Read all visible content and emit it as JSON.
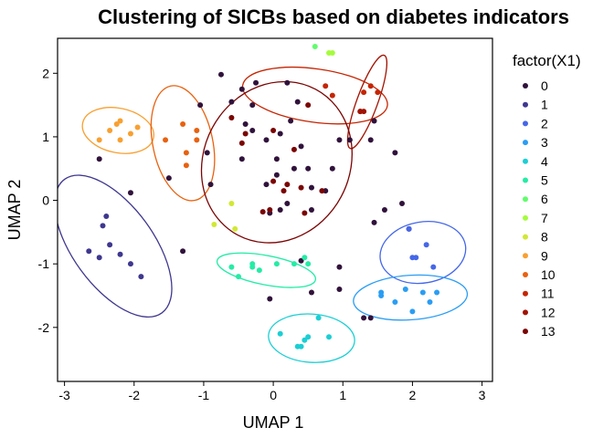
{
  "chart_data": {
    "type": "scatter",
    "title": "Clustering of SICBs based on diabetes indicators",
    "xlabel": "UMAP 1",
    "ylabel": "UMAP 2",
    "xlim": [
      -3.1,
      3.15
    ],
    "ylim": [
      -2.85,
      2.55
    ],
    "x_ticks": [
      -3,
      -2,
      -1,
      0,
      1,
      2,
      3
    ],
    "y_ticks": [
      -2,
      -1,
      0,
      1,
      2
    ],
    "grid": false,
    "legend": {
      "title": "factor(X1)",
      "position": "right"
    },
    "series": [
      {
        "name": "0",
        "color": "#30123B",
        "points": [
          [
            -2.5,
            0.65
          ],
          [
            -2.05,
            0.12
          ],
          [
            -1.5,
            0.35
          ],
          [
            -1.3,
            -0.8
          ],
          [
            -1.05,
            1.5
          ],
          [
            -0.95,
            0.75
          ],
          [
            -0.9,
            0.25
          ],
          [
            -0.75,
            1.98
          ],
          [
            -0.6,
            1.55
          ],
          [
            -0.3,
            1.5
          ],
          [
            -0.25,
            1.85
          ],
          [
            -0.45,
            1.75
          ],
          [
            -0.4,
            1.2
          ],
          [
            -0.3,
            1.1
          ],
          [
            -0.45,
            0.65
          ],
          [
            -0.1,
            0.95
          ],
          [
            0.2,
            1.85
          ],
          [
            0.35,
            1.55
          ],
          [
            0.25,
            1.25
          ],
          [
            0.1,
            1.05
          ],
          [
            0.05,
            0.65
          ],
          [
            0.3,
            0.5
          ],
          [
            0.4,
            0.85
          ],
          [
            0.05,
            0.4
          ],
          [
            -0.1,
            0.25
          ],
          [
            0.1,
            -0.15
          ],
          [
            0.2,
            -0.05
          ],
          [
            0.5,
            0.5
          ],
          [
            0.55,
            0.2
          ],
          [
            0.75,
            0.15
          ],
          [
            0.85,
            0.5
          ],
          [
            0.95,
            0.95
          ],
          [
            1.1,
            0.95
          ],
          [
            1.4,
            0.95
          ],
          [
            1.45,
            1.25
          ],
          [
            0.55,
            -0.15
          ],
          [
            -0.05,
            -1.55
          ],
          [
            0.4,
            -0.95
          ],
          [
            0.55,
            -1.45
          ],
          [
            0.95,
            -1.05
          ],
          [
            0.95,
            -1.4
          ],
          [
            1.45,
            -0.35
          ],
          [
            1.6,
            -0.15
          ],
          [
            1.85,
            -0.05
          ],
          [
            1.75,
            0.75
          ],
          [
            1.95,
            -0.45
          ],
          [
            1.3,
            -1.85
          ],
          [
            1.4,
            -1.85
          ],
          [
            -0.05,
            -0.2
          ]
        ]
      },
      {
        "name": "1",
        "color": "#3E378F",
        "points": [
          [
            -2.65,
            -0.8
          ],
          [
            -2.5,
            -0.9
          ],
          [
            -2.45,
            -0.4
          ],
          [
            -2.4,
            -0.25
          ],
          [
            -2.35,
            -0.7
          ],
          [
            -2.2,
            -0.85
          ],
          [
            -2.05,
            -1.0
          ],
          [
            -1.9,
            -1.2
          ]
        ]
      },
      {
        "name": "2",
        "color": "#4567E8",
        "points": [
          [
            1.95,
            -0.45
          ],
          [
            2.0,
            -0.9
          ],
          [
            2.05,
            -0.9
          ],
          [
            2.2,
            -0.7
          ],
          [
            2.3,
            -1.05
          ]
        ]
      },
      {
        "name": "3",
        "color": "#2A9DF4",
        "points": [
          [
            1.55,
            -1.45
          ],
          [
            1.55,
            -1.5
          ],
          [
            1.75,
            -1.6
          ],
          [
            1.9,
            -1.4
          ],
          [
            2.0,
            -1.75
          ],
          [
            2.15,
            -1.45
          ],
          [
            2.25,
            -1.6
          ],
          [
            2.35,
            -1.45
          ]
        ]
      },
      {
        "name": "4",
        "color": "#1BCFD4",
        "points": [
          [
            0.1,
            -2.1
          ],
          [
            0.35,
            -2.3
          ],
          [
            0.45,
            -2.2
          ],
          [
            0.5,
            -2.15
          ],
          [
            0.65,
            -1.85
          ],
          [
            0.8,
            -2.15
          ],
          [
            0.4,
            -2.3
          ]
        ]
      },
      {
        "name": "5",
        "color": "#24ECA6",
        "points": [
          [
            -0.6,
            -1.05
          ],
          [
            -0.5,
            -1.2
          ],
          [
            -0.3,
            -1.05
          ],
          [
            -0.2,
            -1.1
          ],
          [
            -0.3,
            -1.0
          ],
          [
            0.05,
            -1.0
          ],
          [
            0.3,
            -1.0
          ],
          [
            0.45,
            -0.9
          ],
          [
            0.5,
            -1.0
          ]
        ]
      },
      {
        "name": "6",
        "color": "#61FC6C",
        "points": [
          [
            0.6,
            2.42
          ]
        ]
      },
      {
        "name": "7",
        "color": "#A4FC3C",
        "points": [
          [
            0.8,
            2.32
          ],
          [
            0.85,
            2.32
          ]
        ]
      },
      {
        "name": "8",
        "color": "#D1E834",
        "points": [
          [
            -0.85,
            -0.38
          ],
          [
            -0.55,
            -0.45
          ],
          [
            -0.6,
            -0.05
          ]
        ]
      },
      {
        "name": "9",
        "color": "#F8A031",
        "points": [
          [
            -2.5,
            0.95
          ],
          [
            -2.35,
            1.1
          ],
          [
            -2.25,
            1.2
          ],
          [
            -2.2,
            1.25
          ],
          [
            -2.2,
            0.95
          ],
          [
            -2.05,
            1.05
          ],
          [
            -1.95,
            1.15
          ]
        ]
      },
      {
        "name": "10",
        "color": "#E8610F",
        "points": [
          [
            -1.55,
            0.95
          ],
          [
            -1.3,
            1.2
          ],
          [
            -1.25,
            0.55
          ],
          [
            -1.25,
            0.75
          ],
          [
            -1.1,
            1.1
          ],
          [
            -1.1,
            0.95
          ]
        ]
      },
      {
        "name": "11",
        "color": "#C42503",
        "points": [
          [
            0.75,
            1.8
          ],
          [
            0.85,
            1.65
          ],
          [
            1.25,
            1.4
          ],
          [
            1.3,
            1.7
          ],
          [
            1.4,
            1.8
          ],
          [
            1.5,
            1.7
          ]
        ]
      },
      {
        "name": "12",
        "color": "#A11201",
        "points": [
          [
            1.25,
            1.4
          ],
          [
            1.3,
            1.4
          ]
        ]
      },
      {
        "name": "13",
        "color": "#7A0403",
        "points": [
          [
            -0.6,
            1.3
          ],
          [
            -0.4,
            1.05
          ],
          [
            -0.45,
            0.9
          ],
          [
            0.0,
            0.3
          ],
          [
            0.2,
            0.25
          ],
          [
            0.4,
            0.2
          ],
          [
            0.15,
            0.15
          ],
          [
            0.45,
            -0.2
          ],
          [
            0.7,
            0.15
          ],
          [
            -0.05,
            -0.15
          ],
          [
            0.0,
            1.1
          ],
          [
            0.5,
            1.5
          ],
          [
            0.3,
            0.8
          ],
          [
            -0.15,
            -0.18
          ]
        ]
      }
    ],
    "ellipses": [
      {
        "series": "1",
        "center": [
          -2.3,
          -0.72
        ],
        "rx": 0.58,
        "ry": 1.3,
        "angle": -36
      },
      {
        "series": "2",
        "center": [
          2.15,
          -0.82
        ],
        "rx": 0.62,
        "ry": 0.48,
        "angle": -10
      },
      {
        "series": "3",
        "center": [
          1.97,
          -1.53
        ],
        "rx": 0.82,
        "ry": 0.35,
        "angle": -4
      },
      {
        "series": "4",
        "center": [
          0.55,
          -2.17
        ],
        "rx": 0.62,
        "ry": 0.38,
        "angle": 4
      },
      {
        "series": "5",
        "center": [
          -0.1,
          -1.1
        ],
        "rx": 0.72,
        "ry": 0.23,
        "angle": 11
      },
      {
        "series": "9",
        "center": [
          -2.23,
          1.1
        ],
        "rx": 0.52,
        "ry": 0.35,
        "angle": 12
      },
      {
        "series": "10",
        "center": [
          -1.3,
          0.9
        ],
        "rx": 0.43,
        "ry": 0.92,
        "angle": -12
      },
      {
        "series": "11",
        "center": [
          0.6,
          1.65
        ],
        "rx": 1.05,
        "ry": 0.42,
        "angle": 8
      },
      {
        "series": "12",
        "center": [
          1.35,
          1.55
        ],
        "rx": 0.15,
        "ry": 0.78,
        "angle": 20
      },
      {
        "series": "13",
        "center": [
          0.05,
          0.6
        ],
        "rx": 1.05,
        "ry": 1.3,
        "angle": 28
      }
    ]
  }
}
